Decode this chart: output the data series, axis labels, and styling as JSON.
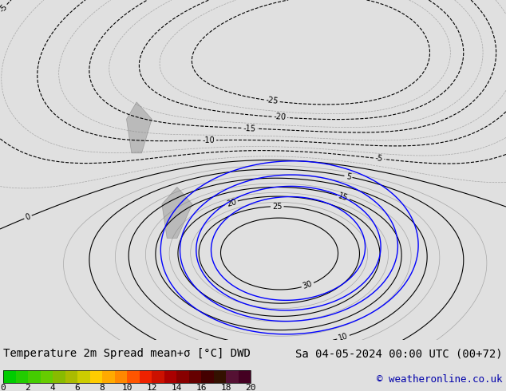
{
  "title_left": "Temperature 2m Spread mean+σ [°C] DWD",
  "title_right": "Sa 04-05-2024 00:00 UTC (00+72)",
  "copyright": "© weatheronline.co.uk",
  "colorbar_ticks": [
    0,
    2,
    4,
    6,
    8,
    10,
    12,
    14,
    16,
    18,
    20
  ],
  "colorbar_colors": [
    "#00cc00",
    "#22cc00",
    "#44cc00",
    "#66cc00",
    "#88cc00",
    "#aacc00",
    "#cccc00",
    "#ffcc00",
    "#ffaa00",
    "#ff7700",
    "#ff4400",
    "#cc2200",
    "#991100",
    "#660000",
    "#440000",
    "#330000",
    "#220000",
    "#110000",
    "#880044",
    "#660033"
  ],
  "bg_color": "#00dd00",
  "map_bg": "#00cc00",
  "bottom_bar_color": "#e8e8e8",
  "text_color": "#000000",
  "font_size_title": 10,
  "font_size_labels": 9,
  "font_size_copyright": 9,
  "colorbar_label_size": 8
}
